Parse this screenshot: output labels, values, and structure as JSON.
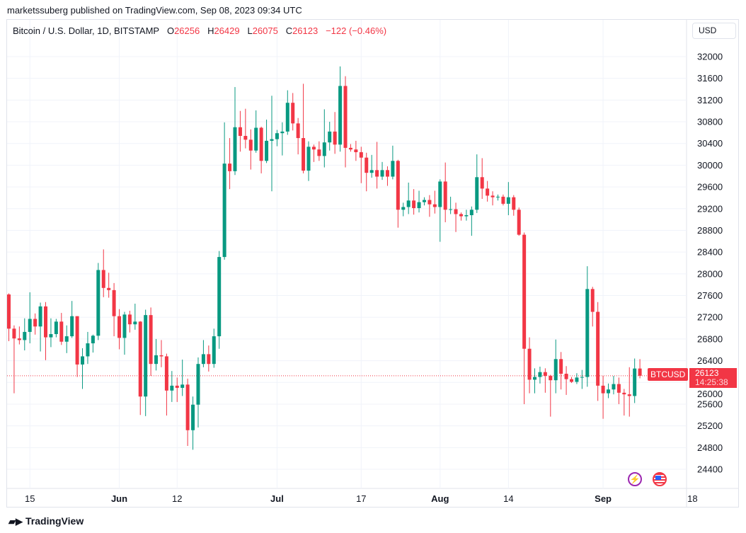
{
  "header": {
    "published": "marketssuberg published on TradingView.com, Sep 08, 2023 09:34 UTC"
  },
  "legend": {
    "symbol": "Bitcoin / U.S. Dollar, 1D, BITSTAMP",
    "o_label": "O",
    "o": "26256",
    "h_label": "H",
    "h": "26429",
    "l_label": "L",
    "l": "26075",
    "c_label": "C",
    "c": "26123",
    "change": "−122 (−0.46%)"
  },
  "currency_button": "USD",
  "price_label": {
    "symbol": "BTCUSD",
    "price": "26123",
    "countdown": "14:25:38"
  },
  "footer": {
    "brand": "TradingView"
  },
  "icons": {
    "events": "lightning-icon",
    "economic": "us-flag-icon"
  },
  "colors": {
    "up": "#089981",
    "down": "#f23645",
    "grid": "#f0f3fa",
    "last_price": "#f23645"
  },
  "chart_data": {
    "type": "candlestick",
    "title": "Bitcoin / U.S. Dollar, 1D, BITSTAMP",
    "ylim": [
      24400,
      32000
    ],
    "yticks": [
      24400,
      24800,
      25200,
      25600,
      26000,
      26400,
      26800,
      27200,
      27600,
      28000,
      28400,
      28800,
      29200,
      29600,
      30000,
      30400,
      30800,
      31200,
      31600,
      32000
    ],
    "xticks": [
      {
        "date": "2023-05-15",
        "label": "15"
      },
      {
        "date": "2023-06-01",
        "label": "Jun"
      },
      {
        "date": "2023-06-12",
        "label": "12"
      },
      {
        "date": "2023-07-01",
        "label": "Jul"
      },
      {
        "date": "2023-07-17",
        "label": "17"
      },
      {
        "date": "2023-08-01",
        "label": "Aug"
      },
      {
        "date": "2023-08-14",
        "label": "14"
      },
      {
        "date": "2023-09-01",
        "label": "Sep"
      },
      {
        "date": "2023-09-18",
        "label": "18"
      }
    ],
    "grid": true,
    "last_price": 26123,
    "candles": [
      {
        "d": "2023-05-11",
        "o": 27620,
        "h": 27640,
        "l": 26760,
        "c": 26990
      },
      {
        "d": "2023-05-12",
        "o": 26990,
        "h": 27050,
        "l": 25800,
        "c": 26810
      },
      {
        "d": "2023-05-13",
        "o": 26810,
        "h": 27030,
        "l": 26700,
        "c": 26780
      },
      {
        "d": "2023-05-14",
        "o": 26780,
        "h": 27180,
        "l": 26590,
        "c": 26930
      },
      {
        "d": "2023-05-15",
        "o": 26930,
        "h": 27660,
        "l": 26720,
        "c": 27170
      },
      {
        "d": "2023-05-16",
        "o": 27170,
        "h": 27270,
        "l": 26880,
        "c": 27030
      },
      {
        "d": "2023-05-17",
        "o": 27030,
        "h": 27470,
        "l": 26570,
        "c": 27400
      },
      {
        "d": "2023-05-18",
        "o": 27400,
        "h": 27480,
        "l": 26410,
        "c": 26830
      },
      {
        "d": "2023-05-19",
        "o": 26830,
        "h": 27180,
        "l": 26650,
        "c": 26890
      },
      {
        "d": "2023-05-20",
        "o": 26890,
        "h": 27170,
        "l": 26830,
        "c": 27120
      },
      {
        "d": "2023-05-21",
        "o": 27120,
        "h": 27280,
        "l": 26690,
        "c": 26750
      },
      {
        "d": "2023-05-22",
        "o": 26750,
        "h": 27050,
        "l": 26540,
        "c": 26850
      },
      {
        "d": "2023-05-23",
        "o": 26850,
        "h": 27500,
        "l": 26820,
        "c": 27220
      },
      {
        "d": "2023-05-24",
        "o": 27220,
        "h": 27220,
        "l": 26100,
        "c": 26330
      },
      {
        "d": "2023-05-25",
        "o": 26330,
        "h": 26630,
        "l": 25880,
        "c": 26480
      },
      {
        "d": "2023-05-26",
        "o": 26480,
        "h": 26930,
        "l": 26340,
        "c": 26720
      },
      {
        "d": "2023-05-27",
        "o": 26720,
        "h": 26880,
        "l": 26550,
        "c": 26860
      },
      {
        "d": "2023-05-28",
        "o": 26860,
        "h": 28200,
        "l": 26780,
        "c": 28070
      },
      {
        "d": "2023-05-29",
        "o": 28070,
        "h": 28450,
        "l": 27570,
        "c": 27740
      },
      {
        "d": "2023-05-30",
        "o": 27740,
        "h": 28020,
        "l": 27560,
        "c": 27700
      },
      {
        "d": "2023-05-31",
        "o": 27700,
        "h": 27830,
        "l": 26850,
        "c": 27220
      },
      {
        "d": "2023-06-01",
        "o": 27220,
        "h": 27350,
        "l": 26610,
        "c": 26820
      },
      {
        "d": "2023-06-02",
        "o": 26820,
        "h": 27300,
        "l": 26510,
        "c": 27250
      },
      {
        "d": "2023-06-03",
        "o": 27250,
        "h": 27320,
        "l": 26920,
        "c": 27070
      },
      {
        "d": "2023-06-04",
        "o": 27070,
        "h": 27450,
        "l": 26970,
        "c": 27120
      },
      {
        "d": "2023-06-05",
        "o": 27120,
        "h": 27130,
        "l": 25400,
        "c": 25740
      },
      {
        "d": "2023-06-06",
        "o": 25740,
        "h": 27340,
        "l": 25380,
        "c": 27240
      },
      {
        "d": "2023-06-07",
        "o": 27240,
        "h": 27380,
        "l": 26120,
        "c": 26340
      },
      {
        "d": "2023-06-08",
        "o": 26340,
        "h": 26800,
        "l": 26220,
        "c": 26500
      },
      {
        "d": "2023-06-09",
        "o": 26500,
        "h": 26780,
        "l": 26280,
        "c": 26480
      },
      {
        "d": "2023-06-10",
        "o": 26480,
        "h": 26530,
        "l": 25390,
        "c": 25850
      },
      {
        "d": "2023-06-11",
        "o": 25850,
        "h": 26210,
        "l": 25640,
        "c": 25940
      },
      {
        "d": "2023-06-12",
        "o": 25940,
        "h": 26090,
        "l": 25640,
        "c": 25900
      },
      {
        "d": "2023-06-13",
        "o": 25900,
        "h": 26420,
        "l": 25750,
        "c": 25960
      },
      {
        "d": "2023-06-14",
        "o": 25960,
        "h": 26070,
        "l": 24830,
        "c": 25120
      },
      {
        "d": "2023-06-15",
        "o": 25120,
        "h": 25740,
        "l": 24760,
        "c": 25590
      },
      {
        "d": "2023-06-16",
        "o": 25590,
        "h": 26460,
        "l": 25170,
        "c": 26340
      },
      {
        "d": "2023-06-17",
        "o": 26340,
        "h": 26780,
        "l": 26280,
        "c": 26520
      },
      {
        "d": "2023-06-18",
        "o": 26520,
        "h": 26680,
        "l": 26200,
        "c": 26340
      },
      {
        "d": "2023-06-19",
        "o": 26340,
        "h": 26990,
        "l": 26270,
        "c": 26850
      },
      {
        "d": "2023-06-20",
        "o": 26850,
        "h": 28420,
        "l": 26620,
        "c": 28310
      },
      {
        "d": "2023-06-21",
        "o": 28310,
        "h": 30790,
        "l": 28260,
        "c": 30030
      },
      {
        "d": "2023-06-22",
        "o": 30030,
        "h": 30500,
        "l": 29560,
        "c": 29890
      },
      {
        "d": "2023-06-23",
        "o": 29890,
        "h": 31440,
        "l": 29820,
        "c": 30700
      },
      {
        "d": "2023-06-24",
        "o": 30700,
        "h": 31000,
        "l": 30250,
        "c": 30540
      },
      {
        "d": "2023-06-25",
        "o": 30540,
        "h": 31040,
        "l": 30310,
        "c": 30470
      },
      {
        "d": "2023-06-26",
        "o": 30470,
        "h": 30660,
        "l": 29920,
        "c": 30270
      },
      {
        "d": "2023-06-27",
        "o": 30270,
        "h": 31010,
        "l": 30230,
        "c": 30690
      },
      {
        "d": "2023-06-28",
        "o": 30690,
        "h": 30710,
        "l": 29850,
        "c": 30080
      },
      {
        "d": "2023-06-29",
        "o": 30080,
        "h": 30840,
        "l": 30040,
        "c": 30450
      },
      {
        "d": "2023-06-30",
        "o": 30450,
        "h": 31280,
        "l": 29520,
        "c": 30480
      },
      {
        "d": "2023-07-01",
        "o": 30480,
        "h": 30650,
        "l": 30350,
        "c": 30590
      },
      {
        "d": "2023-07-02",
        "o": 30590,
        "h": 30790,
        "l": 30180,
        "c": 30620
      },
      {
        "d": "2023-07-03",
        "o": 30620,
        "h": 31380,
        "l": 30560,
        "c": 31150
      },
      {
        "d": "2023-07-04",
        "o": 31150,
        "h": 31330,
        "l": 30640,
        "c": 30770
      },
      {
        "d": "2023-07-05",
        "o": 30770,
        "h": 30870,
        "l": 30200,
        "c": 30500
      },
      {
        "d": "2023-07-06",
        "o": 30500,
        "h": 31500,
        "l": 29850,
        "c": 29900
      },
      {
        "d": "2023-07-07",
        "o": 29900,
        "h": 30440,
        "l": 29710,
        "c": 30340
      },
      {
        "d": "2023-07-08",
        "o": 30340,
        "h": 30380,
        "l": 30060,
        "c": 30290
      },
      {
        "d": "2023-07-09",
        "o": 30290,
        "h": 30440,
        "l": 30080,
        "c": 30170
      },
      {
        "d": "2023-07-10",
        "o": 30170,
        "h": 31030,
        "l": 29960,
        "c": 30420
      },
      {
        "d": "2023-07-11",
        "o": 30420,
        "h": 30800,
        "l": 30270,
        "c": 30620
      },
      {
        "d": "2023-07-12",
        "o": 30620,
        "h": 30980,
        "l": 30210,
        "c": 30380
      },
      {
        "d": "2023-07-13",
        "o": 30380,
        "h": 31820,
        "l": 30250,
        "c": 31460
      },
      {
        "d": "2023-07-14",
        "o": 31460,
        "h": 31640,
        "l": 29960,
        "c": 30320
      },
      {
        "d": "2023-07-15",
        "o": 30320,
        "h": 30390,
        "l": 30250,
        "c": 30290
      },
      {
        "d": "2023-07-16",
        "o": 30290,
        "h": 30450,
        "l": 30080,
        "c": 30240
      },
      {
        "d": "2023-07-17",
        "o": 30240,
        "h": 30340,
        "l": 29670,
        "c": 30140
      },
      {
        "d": "2023-07-18",
        "o": 30140,
        "h": 30230,
        "l": 29520,
        "c": 29860
      },
      {
        "d": "2023-07-19",
        "o": 29860,
        "h": 30190,
        "l": 29770,
        "c": 29910
      },
      {
        "d": "2023-07-20",
        "o": 29910,
        "h": 30430,
        "l": 29570,
        "c": 29790
      },
      {
        "d": "2023-07-21",
        "o": 29790,
        "h": 30060,
        "l": 29730,
        "c": 29910
      },
      {
        "d": "2023-07-22",
        "o": 29910,
        "h": 29980,
        "l": 29620,
        "c": 29790
      },
      {
        "d": "2023-07-23",
        "o": 29790,
        "h": 30360,
        "l": 29740,
        "c": 30080
      },
      {
        "d": "2023-07-24",
        "o": 30080,
        "h": 30100,
        "l": 28850,
        "c": 29180
      },
      {
        "d": "2023-07-25",
        "o": 29180,
        "h": 29310,
        "l": 29060,
        "c": 29230
      },
      {
        "d": "2023-07-26",
        "o": 29230,
        "h": 29680,
        "l": 29100,
        "c": 29350
      },
      {
        "d": "2023-07-27",
        "o": 29350,
        "h": 29560,
        "l": 29090,
        "c": 29210
      },
      {
        "d": "2023-07-28",
        "o": 29210,
        "h": 29530,
        "l": 29130,
        "c": 29320
      },
      {
        "d": "2023-07-29",
        "o": 29320,
        "h": 29410,
        "l": 29260,
        "c": 29360
      },
      {
        "d": "2023-07-30",
        "o": 29360,
        "h": 29450,
        "l": 29050,
        "c": 29280
      },
      {
        "d": "2023-07-31",
        "o": 29280,
        "h": 29530,
        "l": 29110,
        "c": 29230
      },
      {
        "d": "2023-08-01",
        "o": 29230,
        "h": 29740,
        "l": 28590,
        "c": 29700
      },
      {
        "d": "2023-08-02",
        "o": 29700,
        "h": 30050,
        "l": 28950,
        "c": 29180
      },
      {
        "d": "2023-08-03",
        "o": 29180,
        "h": 29420,
        "l": 29100,
        "c": 29190
      },
      {
        "d": "2023-08-04",
        "o": 29190,
        "h": 29310,
        "l": 28770,
        "c": 29100
      },
      {
        "d": "2023-08-05",
        "o": 29100,
        "h": 29130,
        "l": 28980,
        "c": 29060
      },
      {
        "d": "2023-08-06",
        "o": 29060,
        "h": 29180,
        "l": 28980,
        "c": 29080
      },
      {
        "d": "2023-08-07",
        "o": 29080,
        "h": 29240,
        "l": 28700,
        "c": 29180
      },
      {
        "d": "2023-08-08",
        "o": 29180,
        "h": 30200,
        "l": 29120,
        "c": 29780
      },
      {
        "d": "2023-08-09",
        "o": 29780,
        "h": 30130,
        "l": 29380,
        "c": 29570
      },
      {
        "d": "2023-08-10",
        "o": 29570,
        "h": 29710,
        "l": 29330,
        "c": 29440
      },
      {
        "d": "2023-08-11",
        "o": 29440,
        "h": 29520,
        "l": 29260,
        "c": 29410
      },
      {
        "d": "2023-08-12",
        "o": 29410,
        "h": 29460,
        "l": 29350,
        "c": 29420
      },
      {
        "d": "2023-08-13",
        "o": 29420,
        "h": 29460,
        "l": 29260,
        "c": 29290
      },
      {
        "d": "2023-08-14",
        "o": 29290,
        "h": 29690,
        "l": 29080,
        "c": 29410
      },
      {
        "d": "2023-08-15",
        "o": 29410,
        "h": 29450,
        "l": 29070,
        "c": 29180
      },
      {
        "d": "2023-08-16",
        "o": 29180,
        "h": 29220,
        "l": 28700,
        "c": 28720
      },
      {
        "d": "2023-08-17",
        "o": 28720,
        "h": 28760,
        "l": 25600,
        "c": 26620
      },
      {
        "d": "2023-08-18",
        "o": 26620,
        "h": 26830,
        "l": 25800,
        "c": 26050
      },
      {
        "d": "2023-08-19",
        "o": 26050,
        "h": 26260,
        "l": 25800,
        "c": 26100
      },
      {
        "d": "2023-08-20",
        "o": 26100,
        "h": 26290,
        "l": 25980,
        "c": 26190
      },
      {
        "d": "2023-08-21",
        "o": 26190,
        "h": 26260,
        "l": 25810,
        "c": 26120
      },
      {
        "d": "2023-08-22",
        "o": 26120,
        "h": 26140,
        "l": 25370,
        "c": 26040
      },
      {
        "d": "2023-08-23",
        "o": 26040,
        "h": 26790,
        "l": 25800,
        "c": 26430
      },
      {
        "d": "2023-08-24",
        "o": 26430,
        "h": 26560,
        "l": 25870,
        "c": 26160
      },
      {
        "d": "2023-08-25",
        "o": 26160,
        "h": 26300,
        "l": 25770,
        "c": 26060
      },
      {
        "d": "2023-08-26",
        "o": 26060,
        "h": 26100,
        "l": 25990,
        "c": 26010
      },
      {
        "d": "2023-08-27",
        "o": 26010,
        "h": 26170,
        "l": 25970,
        "c": 26090
      },
      {
        "d": "2023-08-28",
        "o": 26090,
        "h": 26230,
        "l": 25880,
        "c": 26100
      },
      {
        "d": "2023-08-29",
        "o": 26100,
        "h": 28140,
        "l": 25920,
        "c": 27720
      },
      {
        "d": "2023-08-30",
        "o": 27720,
        "h": 27760,
        "l": 27030,
        "c": 27300
      },
      {
        "d": "2023-08-31",
        "o": 27300,
        "h": 27480,
        "l": 25660,
        "c": 25940
      },
      {
        "d": "2023-09-01",
        "o": 25940,
        "h": 26120,
        "l": 25330,
        "c": 25800
      },
      {
        "d": "2023-09-02",
        "o": 25800,
        "h": 25980,
        "l": 25710,
        "c": 25870
      },
      {
        "d": "2023-09-03",
        "o": 25870,
        "h": 26120,
        "l": 25780,
        "c": 25970
      },
      {
        "d": "2023-09-04",
        "o": 25970,
        "h": 26090,
        "l": 25600,
        "c": 25810
      },
      {
        "d": "2023-09-05",
        "o": 25810,
        "h": 25880,
        "l": 25390,
        "c": 25780
      },
      {
        "d": "2023-09-06",
        "o": 25780,
        "h": 26280,
        "l": 25370,
        "c": 25750
      },
      {
        "d": "2023-09-07",
        "o": 25750,
        "h": 26440,
        "l": 25620,
        "c": 26256
      },
      {
        "d": "2023-09-08",
        "o": 26256,
        "h": 26429,
        "l": 26075,
        "c": 26123
      }
    ]
  }
}
